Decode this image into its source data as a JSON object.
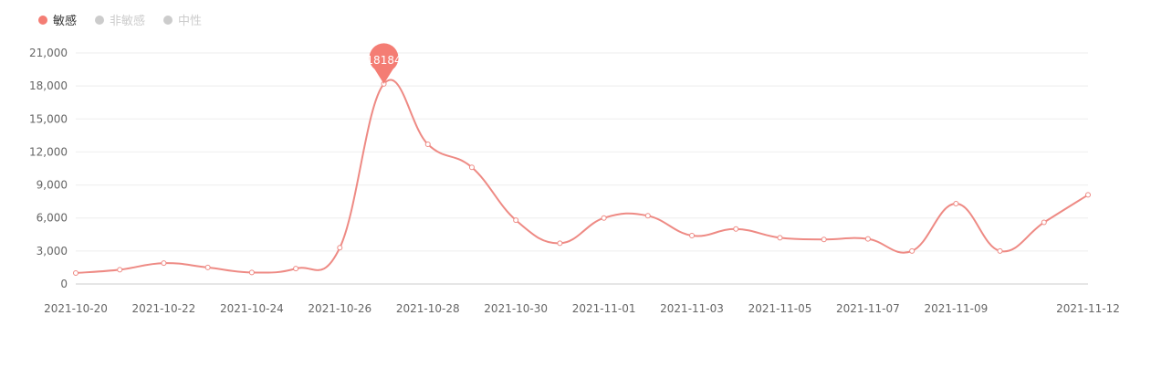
{
  "legend": {
    "items": [
      {
        "label": "敏感",
        "color": "#f47d74",
        "active": true
      },
      {
        "label": "非敏感",
        "color": "#cccccc",
        "active": false
      },
      {
        "label": "中性",
        "color": "#cccccc",
        "active": false
      }
    ]
  },
  "chart_data": {
    "type": "line",
    "smooth": true,
    "x": [
      "2021-10-20",
      "2021-10-21",
      "2021-10-22",
      "2021-10-23",
      "2021-10-24",
      "2021-10-25",
      "2021-10-26",
      "2021-10-27",
      "2021-10-28",
      "2021-10-29",
      "2021-10-30",
      "2021-10-31",
      "2021-11-01",
      "2021-11-02",
      "2021-11-03",
      "2021-11-04",
      "2021-11-05",
      "2021-11-06",
      "2021-11-07",
      "2021-11-08",
      "2021-11-09",
      "2021-11-10",
      "2021-11-11",
      "2021-11-12"
    ],
    "x_tick_labels": [
      "2021-10-20",
      "2021-10-22",
      "2021-10-24",
      "2021-10-26",
      "2021-10-28",
      "2021-10-30",
      "2021-11-01",
      "2021-11-03",
      "2021-11-05",
      "2021-11-07",
      "2021-11-09",
      "2021-11-12"
    ],
    "series": [
      {
        "name": "敏感",
        "color": "#ee8a84",
        "values": [
          1000,
          1300,
          1900,
          1500,
          1050,
          1400,
          3300,
          18184,
          12700,
          10600,
          5800,
          3700,
          6000,
          6200,
          4400,
          5000,
          4200,
          4050,
          4100,
          3000,
          7300,
          3000,
          5600,
          8100
        ]
      }
    ],
    "ylim": [
      0,
      21000
    ],
    "y_ticks": [
      0,
      3000,
      6000,
      9000,
      12000,
      15000,
      18000,
      21000
    ],
    "y_tick_labels": [
      "0",
      "3,000",
      "6,000",
      "9,000",
      "12,000",
      "15,000",
      "18,000",
      "21,000"
    ],
    "grid": true,
    "markPoint": {
      "label": "18184",
      "index": 7,
      "color": "#f47d74"
    }
  }
}
